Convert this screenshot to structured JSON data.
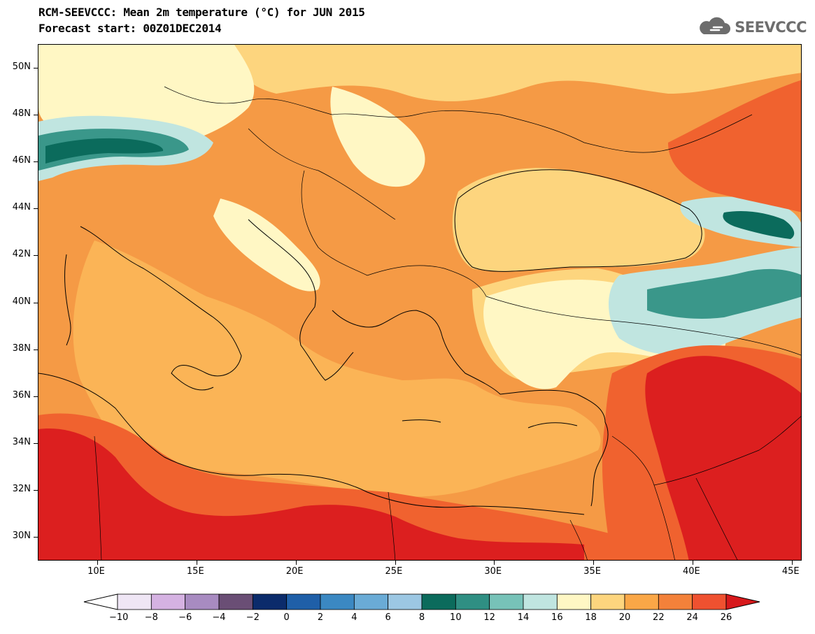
{
  "header": {
    "title": "RCM-SEEVCCC: Mean 2m temperature (°C) for JUN 2015",
    "subtitle": "Forecast start: 00Z01DEC2014",
    "logo_text": "SEEVCCC"
  },
  "map": {
    "lat_labels": [
      "50N",
      "48N",
      "46N",
      "44N",
      "42N",
      "40N",
      "38N",
      "36N",
      "34N",
      "32N",
      "30N"
    ],
    "lat_values": [
      50,
      48,
      46,
      44,
      42,
      40,
      38,
      36,
      34,
      32,
      30
    ],
    "lon_labels": [
      "10E",
      "15E",
      "20E",
      "25E",
      "30E",
      "35E",
      "40E",
      "45E"
    ],
    "lon_values": [
      10,
      15,
      20,
      25,
      30,
      35,
      40,
      45
    ],
    "lon_range": [
      7,
      45.5
    ],
    "lat_range": [
      29,
      51
    ]
  },
  "colorbar": {
    "tick_labels": [
      "−10",
      "−8",
      "−6",
      "−4",
      "−2",
      "0",
      "2",
      "4",
      "6",
      "8",
      "10",
      "12",
      "14",
      "16",
      "18",
      "20",
      "22",
      "24",
      "26"
    ],
    "colors": [
      "#ffffff",
      "#efe6f5",
      "#d5b2e2",
      "#a88bc1",
      "#6a4e75",
      "#0b2b6b",
      "#1f5fa8",
      "#3b88c2",
      "#6aabd6",
      "#9cc7e3",
      "#0b6b5c",
      "#2f8f83",
      "#77c2b8",
      "#c0e5e0",
      "#fff7c4",
      "#fdd57e",
      "#faa747",
      "#f3813a",
      "#ef5130",
      "#d7191c"
    ]
  },
  "palette": {
    "tmp_14": "#c0e5e0",
    "tmp_16": "#fff7c4",
    "tmp_18": "#fdd57e",
    "tmp_20": "#fbb456",
    "tmp_22": "#f59a45",
    "tmp_24": "#f0622f",
    "tmp_26": "#dc1f1f",
    "tmp_10": "#0b6b5c",
    "tmp_12": "#3a978a"
  }
}
